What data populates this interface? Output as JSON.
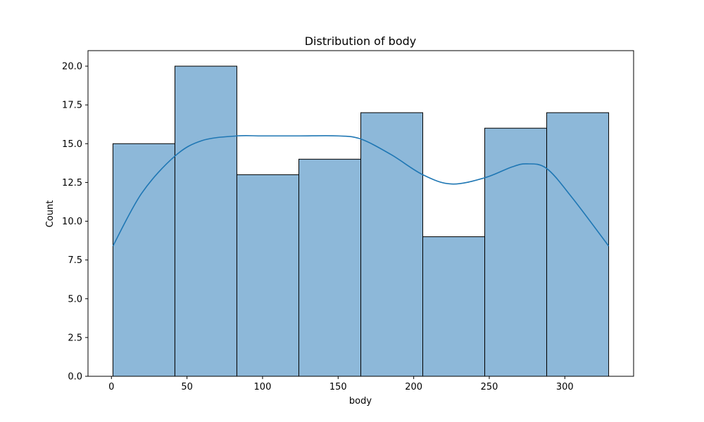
{
  "chart_data": {
    "type": "bar",
    "title": "Distribution of body",
    "xlabel": "body",
    "ylabel": "Count",
    "bin_edges": [
      1,
      42,
      83,
      124,
      165,
      206,
      247,
      288,
      329
    ],
    "values": [
      15,
      20,
      13,
      14,
      17,
      9,
      16,
      17
    ],
    "kde": {
      "x": [
        1,
        20,
        42,
        60,
        83,
        100,
        124,
        150,
        165,
        185,
        206,
        225,
        247,
        265,
        275,
        288,
        305,
        329
      ],
      "y": [
        8.4,
        11.8,
        14.2,
        15.2,
        15.5,
        15.5,
        15.5,
        15.5,
        15.3,
        14.3,
        13.0,
        12.4,
        12.8,
        13.5,
        13.7,
        13.4,
        11.5,
        8.4
      ]
    },
    "xlim": [
      -15.5,
      345.5
    ],
    "ylim": [
      0,
      21
    ],
    "xticks": [
      0,
      50,
      100,
      150,
      200,
      250,
      300
    ],
    "yticks": [
      0.0,
      2.5,
      5.0,
      7.5,
      10.0,
      12.5,
      15.0,
      17.5,
      20.0
    ],
    "ytick_labels": [
      "0.0",
      "2.5",
      "5.0",
      "7.5",
      "10.0",
      "12.5",
      "15.0",
      "17.5",
      "20.0"
    ],
    "grid": false,
    "colors": {
      "bar_fill": "#8db8d9",
      "bar_edge": "#000000",
      "kde_line": "#1f77b4"
    }
  }
}
